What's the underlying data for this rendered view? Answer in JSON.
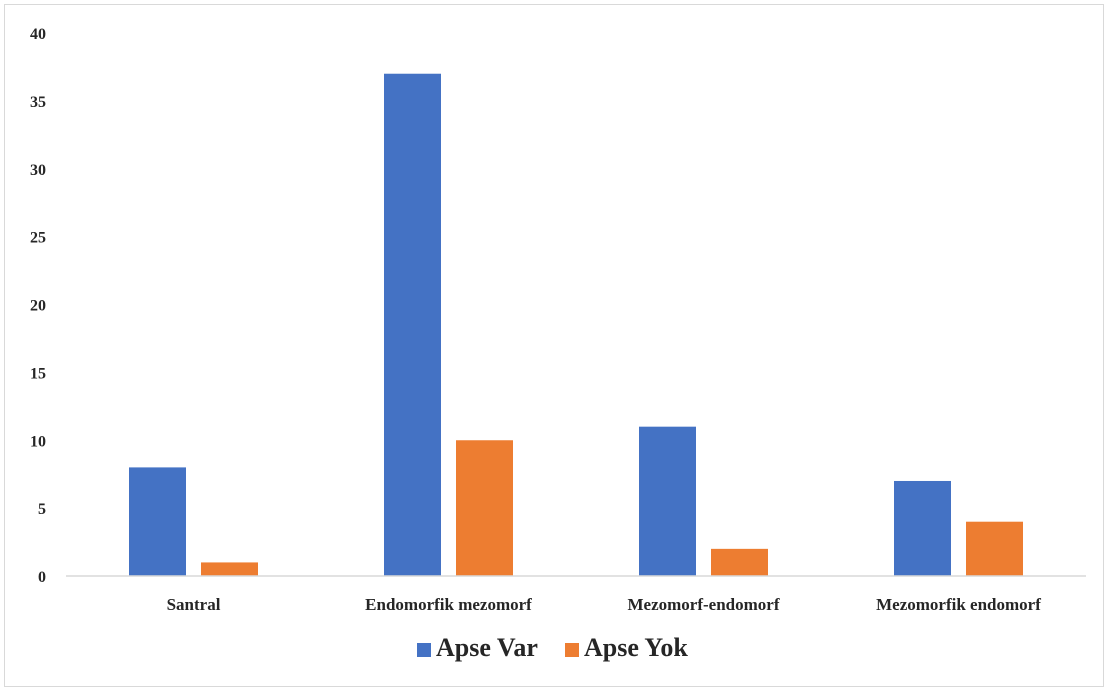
{
  "chart_data": {
    "type": "bar",
    "title": "",
    "xlabel": "",
    "ylabel": "",
    "categories": [
      "Santral",
      "Endomorfik mezomorf",
      "Mezomorf-endomorf",
      "Mezomorfik endomorf"
    ],
    "series": [
      {
        "name": "Apse Var",
        "color": "#4472c4",
        "values": [
          8,
          37,
          11,
          7
        ]
      },
      {
        "name": "Apse Yok",
        "color": "#ed7d31",
        "values": [
          1,
          10,
          2,
          4
        ]
      }
    ],
    "ylim": [
      0,
      40
    ],
    "yticks": [
      0,
      5,
      10,
      15,
      20,
      25,
      30,
      35,
      40
    ],
    "grid": false,
    "legend_position": "bottom"
  }
}
